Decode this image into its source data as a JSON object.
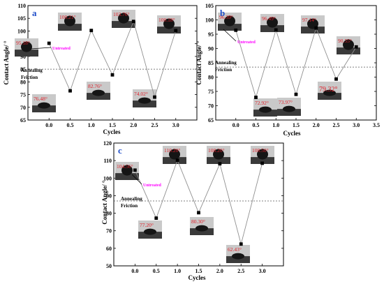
{
  "colors": {
    "annotation": "#e0202a",
    "panel_letter": "#1f4ec9",
    "untreated": "#ff00ff",
    "line": "#909090",
    "ref_line": "#555555"
  },
  "chart_data": [
    {
      "type": "line",
      "panel": "a",
      "xlabel": "Cycles",
      "ylabel": "Contact Angle/ °",
      "xlim": [
        -0.5,
        3.5
      ],
      "ylim": [
        65,
        110
      ],
      "xticks": [
        "0.0",
        "0.5",
        "1.0",
        "1.5",
        "2.0",
        "2.5",
        "3.0"
      ],
      "yticks": [
        "65",
        "70",
        "75",
        "80",
        "85",
        "90",
        "95",
        "100",
        "105",
        "110"
      ],
      "x": [
        0.0,
        0.5,
        1.0,
        1.5,
        2.0,
        2.5,
        3.0
      ],
      "values": [
        95.18,
        76.48,
        100.21,
        82.76,
        103.76,
        74.02,
        100.18
      ],
      "labels": [
        "95.18°",
        "76.48°",
        "100.21°",
        "82.76°",
        "103.76°",
        "74.02°",
        "100.18°"
      ],
      "reference_y": 85,
      "reference_labels": [
        "Annealing",
        "Friction"
      ],
      "untreated_label": "Untreated"
    },
    {
      "type": "line",
      "panel": "b",
      "xlabel": "Cycles",
      "ylabel": "Contact Angle/ °",
      "xlim": [
        -0.5,
        3.5
      ],
      "ylim": [
        65,
        105
      ],
      "xticks": [
        "0.0",
        "0.5",
        "1.0",
        "1.5",
        "2.0",
        "2.5",
        "3.0",
        "3.5"
      ],
      "yticks": [
        "65",
        "70",
        "75",
        "80",
        "85",
        "90",
        "95",
        "100",
        "105"
      ],
      "x": [
        0.0,
        0.5,
        1.0,
        1.5,
        2.0,
        2.5,
        3.0
      ],
      "values": [
        96.39,
        72.92,
        96.49,
        73.97,
        97.14,
        79.32,
        90.55
      ],
      "labels": [
        "96.39°",
        "72.92°",
        "96.49°",
        "73.97°",
        "97.14°",
        "79.32°",
        "90.55°"
      ],
      "reference_y": 83.5,
      "reference_labels": [
        "Annealing",
        "Friction"
      ],
      "untreated_label": "Untreated"
    },
    {
      "type": "line",
      "panel": "c",
      "xlabel": "Cycles",
      "ylabel": "Contact Angle/ °",
      "xlim": [
        -0.5,
        3.5
      ],
      "ylim": [
        50,
        120
      ],
      "xticks": [
        "0.0",
        "0.5",
        "1.0",
        "1.5",
        "2.0",
        "2.5",
        "3.0"
      ],
      "yticks": [
        "50",
        "60",
        "70",
        "80",
        "90",
        "100",
        "110",
        "120"
      ],
      "x": [
        0.0,
        0.5,
        1.0,
        1.5,
        2.0,
        2.5,
        3.0
      ],
      "values": [
        104.56,
        77.2,
        110.2,
        80.3,
        108.2,
        62.43,
        108.5
      ],
      "labels": [
        "104.56°",
        "77.20°",
        "110.20°",
        "80.30°",
        "108.20°",
        "62.43°",
        "108.50°"
      ],
      "reference_y": 87,
      "reference_labels": [
        "Annealing",
        "Friction"
      ],
      "untreated_label": "Untreated"
    }
  ]
}
